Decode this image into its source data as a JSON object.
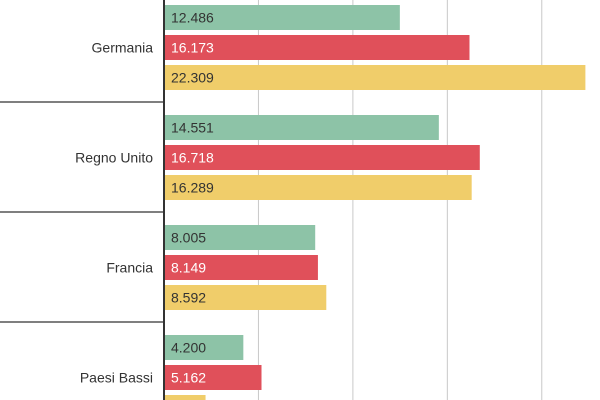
{
  "chart_data": {
    "type": "bar",
    "orientation": "horizontal",
    "categories": [
      "Germania",
      "Regno Unito",
      "Francia",
      "Paesi Bassi"
    ],
    "series": [
      {
        "values": [
          12486,
          14551,
          8005,
          4200
        ],
        "labels": [
          "12.486",
          "14.551",
          "8.005",
          "4.200"
        ],
        "color": "#8dc3a7",
        "label_color": "#333333"
      },
      {
        "values": [
          16173,
          16718,
          8149,
          5162
        ],
        "labels": [
          "16.173",
          "16.718",
          "8.149",
          "5.162"
        ],
        "color": "#e0505a",
        "label_color": "#ffffff"
      },
      {
        "values": [
          22309,
          16289,
          8592,
          null
        ],
        "labels": [
          "22.309",
          "16.289",
          "8.592",
          ""
        ],
        "color": "#f0cd6a",
        "label_color": "#333333"
      }
    ],
    "xlim": [
      0,
      22500
    ],
    "grid": true,
    "legend": "none",
    "title": "",
    "xlabel": "",
    "ylabel": ""
  }
}
